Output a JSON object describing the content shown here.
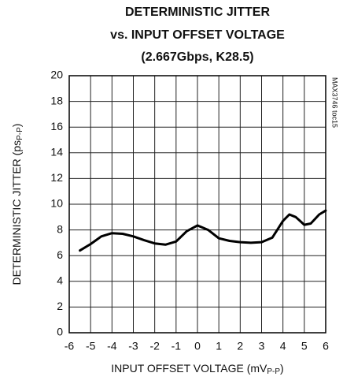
{
  "chart_data": {
    "type": "line",
    "title": [
      "DETERMINISTIC JITTER",
      "vs. INPUT OFFSET VOLTAGE",
      "(2.667Gbps, K28.5)"
    ],
    "xlabel": [
      "INPUT OFFSET VOLTAGE (mV",
      "P-P",
      ")"
    ],
    "ylabel": [
      "DETERMINISTIC JITTER (ps",
      "P-P",
      ")"
    ],
    "note": "MAX3746 toc15",
    "x": [
      -5.5,
      -5,
      -4.5,
      -4,
      -3.5,
      -3,
      -2.5,
      -2,
      -1.5,
      -1,
      -0.5,
      0,
      0.5,
      1,
      1.5,
      2,
      2.5,
      3,
      3.5,
      4,
      4.3,
      4.6,
      5,
      5.3,
      5.7,
      6
    ],
    "values": [
      6.4,
      6.9,
      7.5,
      7.75,
      7.7,
      7.5,
      7.2,
      6.95,
      6.85,
      7.1,
      7.9,
      8.35,
      8.0,
      7.35,
      7.15,
      7.05,
      7.0,
      7.05,
      7.4,
      8.7,
      9.2,
      9.0,
      8.4,
      8.5,
      9.2,
      9.5
    ],
    "color": "#000000",
    "xlim": [
      -6,
      6
    ],
    "xticks": [
      -6,
      -5,
      -4,
      -3,
      -2,
      -1,
      0,
      1,
      2,
      3,
      4,
      5,
      6
    ],
    "ylim": [
      0,
      20
    ],
    "yticks": [
      0,
      2,
      4,
      6,
      8,
      10,
      12,
      14,
      16,
      18,
      20
    ],
    "grid": true
  }
}
